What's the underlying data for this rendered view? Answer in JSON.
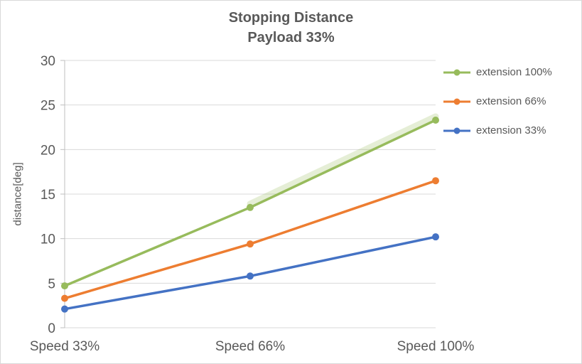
{
  "chart_data": {
    "type": "line",
    "title": "Stopping Distance",
    "subtitle": "Payload 33%",
    "ylabel": "distance[deg]",
    "xlabel": "",
    "categories": [
      "Speed 33%",
      "Speed 66%",
      "Speed 100%"
    ],
    "ylim": [
      0,
      30
    ],
    "ytick_step": 5,
    "grid": true,
    "legend_position": "right",
    "series": [
      {
        "name": "extension 100%",
        "color": "#97BB5C",
        "values": [
          4.7,
          13.5,
          23.3
        ],
        "glow": true
      },
      {
        "name": "extension 66%",
        "color": "#ED7D31",
        "values": [
          3.3,
          9.4,
          16.5
        ],
        "glow": false
      },
      {
        "name": "extension 33%",
        "color": "#4472C4",
        "values": [
          2.1,
          5.8,
          10.2
        ],
        "glow": false
      }
    ],
    "colors": {
      "text": "#595959",
      "grid": "#D9D9D9",
      "axis": "#BFBFBF",
      "background": "#FFFFFF",
      "border": "#D9D9D9"
    }
  }
}
